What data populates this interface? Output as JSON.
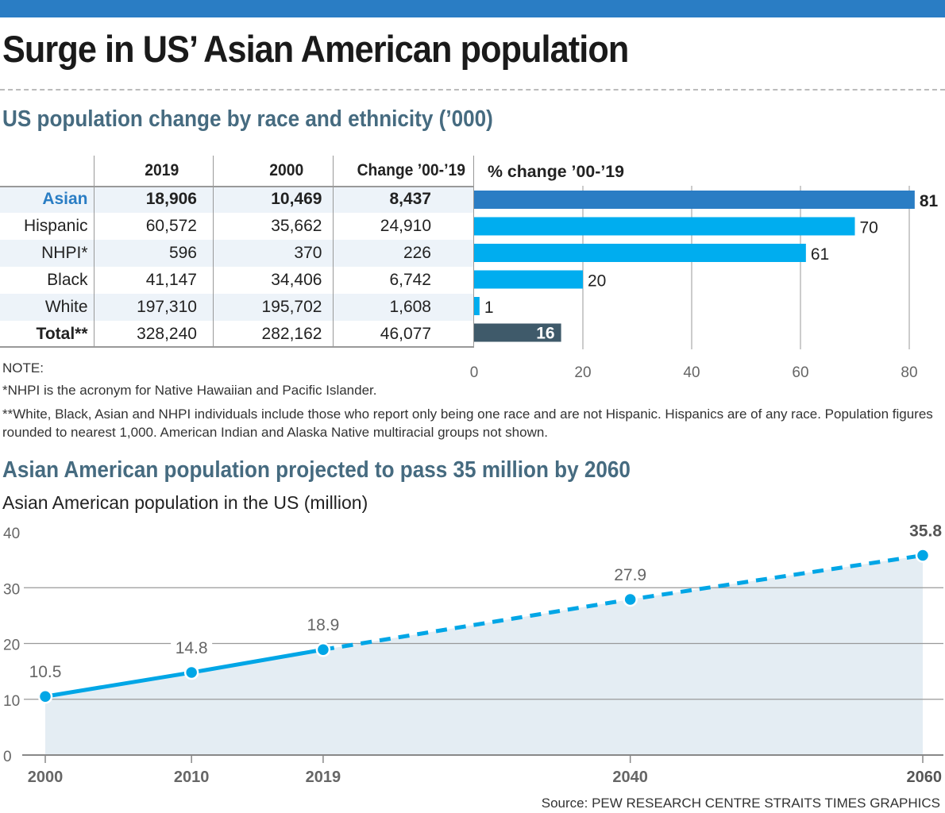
{
  "title": "Surge in US’ Asian American population",
  "section1_title": "US population change by race and ethnicity (’000)",
  "table": {
    "headers": [
      "",
      "2019",
      "2000",
      "Change ’00-’19"
    ],
    "rows": [
      {
        "label": "Asian",
        "v2019": "18,906",
        "v2000": "10,469",
        "change": "8,437"
      },
      {
        "label": "Hispanic",
        "v2019": "60,572",
        "v2000": "35,662",
        "change": "24,910"
      },
      {
        "label": "NHPI*",
        "v2019": "596",
        "v2000": "370",
        "change": "226"
      },
      {
        "label": "Black",
        "v2019": "41,147",
        "v2000": "34,406",
        "change": "6,742"
      },
      {
        "label": "White",
        "v2019": "197,310",
        "v2000": "195,702",
        "change": "1,608"
      },
      {
        "label": "Total**",
        "v2019": "328,240",
        "v2000": "282,162",
        "change": "46,077"
      }
    ]
  },
  "notes": {
    "heading": "NOTE:",
    "note1": "*NHPI is the acronym for Native Hawaiian and Pacific Islander.",
    "note2": "**White, Black, Asian and NHPI individuals include those who report only being one race and are not Hispanic. Hispanics are of any race. Population figures rounded to nearest 1,000. American Indian and Alaska Native multiracial groups not shown."
  },
  "section2_title": "Asian American population projected to pass 35 million by 2060",
  "source": "Source: PEW RESEARCH CENTRE   STRAITS TIMES GRAPHICS",
  "colors": {
    "accent": "#2a7dc4",
    "bar": "#00adef",
    "total_bar": "#3f5a6a",
    "area": "#e4edf3",
    "line": "#00a6e6"
  },
  "chart_data": [
    {
      "type": "bar",
      "orientation": "horizontal",
      "title": "% change ’00-’19",
      "categories": [
        "Asian",
        "Hispanic",
        "NHPI*",
        "Black",
        "White",
        "Total**"
      ],
      "values": [
        81,
        70,
        61,
        20,
        1,
        16
      ],
      "xlim": [
        0,
        80
      ],
      "xticks": [
        0,
        20,
        40,
        60,
        80
      ],
      "grid": true
    },
    {
      "type": "area",
      "title": "Asian American population in the US (million)",
      "x": [
        2000,
        2010,
        2019,
        2040,
        2060
      ],
      "values": [
        10.5,
        14.8,
        18.9,
        27.9,
        35.8
      ],
      "labels": [
        "10.5",
        "14.8",
        "18.9",
        "27.9",
        "35.8"
      ],
      "projected_from": 2019,
      "ylim": [
        0,
        40
      ],
      "yticks": [
        0,
        10,
        20,
        30,
        40
      ],
      "xticks": [
        "2000",
        "2010",
        "2019",
        "2040",
        "2060"
      ],
      "grid": true
    }
  ]
}
